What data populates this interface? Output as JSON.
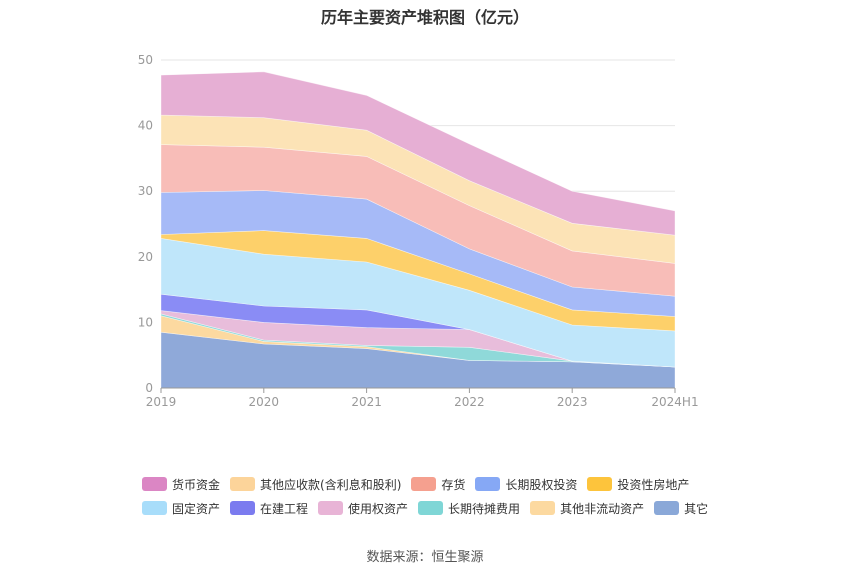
{
  "title": "历年主要资产堆积图（亿元）",
  "source": "数据来源：恒生聚源",
  "chart_data": {
    "type": "area",
    "stacked": true,
    "title": "历年主要资产堆积图（亿元）",
    "x": [
      "2019",
      "2020",
      "2021",
      "2022",
      "2023",
      "2024H1"
    ],
    "ylim": [
      0,
      50
    ],
    "yticks": [
      0,
      10,
      20,
      30,
      40,
      50
    ],
    "grid": true,
    "legend_position": "bottom",
    "series": [
      {
        "name": "其它",
        "color": "#8fa9d9",
        "values": [
          8.5,
          6.7,
          6.0,
          4.2,
          4.0,
          3.2
        ]
      },
      {
        "name": "其他非流动资产",
        "color": "#fcd9a0",
        "values": [
          2.5,
          0.4,
          0.3,
          0,
          0,
          0
        ]
      },
      {
        "name": "长期待摊费用",
        "color": "#8fd9d9",
        "values": [
          0.3,
          0.2,
          0.2,
          2.0,
          0.1,
          0
        ]
      },
      {
        "name": "使用权资产",
        "color": "#e8bddb",
        "values": [
          0.5,
          2.7,
          2.7,
          2.7,
          0,
          0
        ]
      },
      {
        "name": "在建工程",
        "color": "#8a8cf5",
        "values": [
          2.5,
          2.5,
          2.7,
          0,
          0,
          0
        ]
      },
      {
        "name": "固定资产",
        "color": "#bfe6fa",
        "values": [
          8.5,
          7.9,
          7.3,
          6.0,
          5.5,
          5.5
        ]
      },
      {
        "name": "投资性房地产",
        "color": "#fdd06a",
        "values": [
          0.6,
          3.6,
          3.6,
          2.5,
          2.3,
          2.2
        ]
      },
      {
        "name": "长期股权投资",
        "color": "#a6baf7",
        "values": [
          6.4,
          6.1,
          6.0,
          3.8,
          3.5,
          3.1
        ]
      },
      {
        "name": "存货",
        "color": "#f8bdb8",
        "values": [
          7.3,
          6.6,
          6.5,
          6.6,
          5.5,
          5.0
        ]
      },
      {
        "name": "其他应收款(含利息和股利)",
        "color": "#fce3b6",
        "values": [
          4.5,
          4.5,
          4.0,
          3.8,
          4.2,
          4.3
        ]
      },
      {
        "name": "货币资金",
        "color": "#e6afd4",
        "values": [
          6.1,
          7.0,
          5.3,
          5.6,
          4.9,
          3.7
        ]
      }
    ],
    "legend_order": [
      "货币资金",
      "其他应收款(含利息和股利)",
      "存货",
      "长期股权投资",
      "投资性房地产",
      "固定资产",
      "在建工程",
      "使用权资产",
      "长期待摊费用",
      "其他非流动资产",
      "其它"
    ],
    "legend_swatch_colors": {
      "货币资金": "#db86c4",
      "其他应收款(含利息和股利)": "#fcd49a",
      "存货": "#f5a08f",
      "长期股权投资": "#86a8f5",
      "投资性房地产": "#fdc43c",
      "固定资产": "#a8ddfa",
      "在建工程": "#7b7bef",
      "使用权资产": "#e8b4d6",
      "长期待摊费用": "#7fd6d6",
      "其他非流动资产": "#fcd9a0",
      "其它": "#8aa8d8"
    }
  }
}
